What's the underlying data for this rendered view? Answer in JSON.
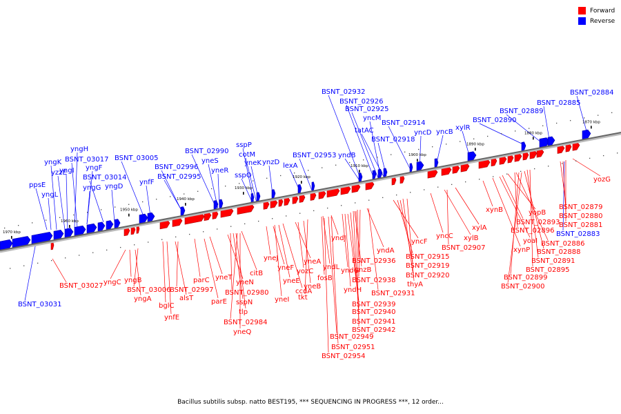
{
  "legend": {
    "forward_label": "Forward",
    "reverse_label": "Reverse",
    "forward_color": "#ff0000",
    "reverse_color": "#0000ff"
  },
  "caption": "Bacillus subtilis subsp. natto BEST195, *** SEQUENCING IN PROGRESS ***, 12 order...",
  "ticks": [
    "1970 kbp",
    "1960 kbp",
    "1950 kbp",
    "1940 kbp",
    "1930 kbp",
    "1920 kbp",
    "1910 kbp",
    "1900 kbp",
    "1890 kbp",
    "1880 kbp",
    "1870 kbp"
  ],
  "reverse_labels": [
    "BSNT_03031",
    "ppsE",
    "yngL",
    "yngK",
    "yngI",
    "yngH",
    "yngF",
    "yzzE",
    "BSNT_03017",
    "yngG",
    "BSNT_03014",
    "yngD",
    "BSNT_03005",
    "ynfF",
    "BSNT_02996",
    "BSNT_02995",
    "BSNT_02990",
    "yneS",
    "yneR",
    "sspP",
    "cotM",
    "sspO",
    "yneK",
    "ynzD",
    "lexA",
    "BSNT_02953",
    "yndB",
    "BSNT_02932",
    "BSNT_02926",
    "BSNT_02925",
    "yncM",
    "tatAC",
    "BSNT_02918",
    "BSNT_02914",
    "yncD",
    "yncB",
    "xylR",
    "BSNT_02890",
    "BSNT_02889",
    "BSNT_02885",
    "BSNT_02884",
    "BSNT_02883"
  ],
  "forward_labels": [
    "BSNT_03027",
    "yngC",
    "yngB",
    "yngA",
    "BSNT_03006",
    "bglC",
    "ynfE",
    "alsT",
    "BSNT_02997",
    "parC",
    "parE",
    "yneT",
    "citB",
    "yneN",
    "BSNT_02980",
    "sspN",
    "tlp",
    "BSNT_02984",
    "yneQ",
    "yneJ",
    "yneF",
    "yneE",
    "yneI",
    "ccdA",
    "yneA",
    "yneB",
    "yozC",
    "tkt",
    "fosB",
    "yndL",
    "yndJ",
    "yndG",
    "yndH",
    "ynzB",
    "yndA",
    "BSNT_02936",
    "BSNT_02938",
    "BSNT_02931",
    "BSNT_02939",
    "BSNT_02940",
    "BSNT_02941",
    "BSNT_02942",
    "BSNT_02949",
    "BSNT_02951",
    "BSNT_02954",
    "yncF",
    "BSNT_02915",
    "BSNT_02919",
    "BSNT_02920",
    "thyA",
    "yncC",
    "xylB",
    "BSNT_02907",
    "xylA",
    "xynB",
    "xynP",
    "yoaI",
    "yopB",
    "BSNT_02893",
    "BSNT_02896",
    "BSNT_02886",
    "BSNT_02888",
    "BSNT_02891",
    "BSNT_02895",
    "BSNT_02899",
    "BSNT_02900",
    "BSNT_02879",
    "BSNT_02880",
    "BSNT_02881",
    "yozG"
  ]
}
